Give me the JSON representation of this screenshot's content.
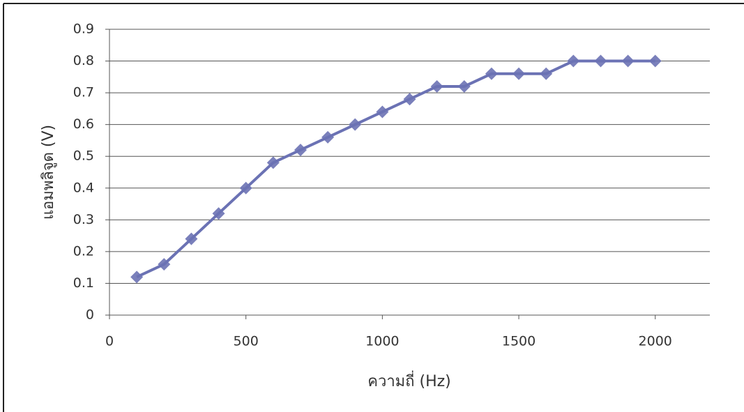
{
  "chart_data": {
    "type": "line",
    "x_label": "ความถี่ (Hz)",
    "y_label": "แอมพลิจูด (V)",
    "x": [
      100,
      200,
      300,
      400,
      500,
      600,
      700,
      800,
      900,
      1000,
      1100,
      1200,
      1300,
      1400,
      1500,
      1600,
      1700,
      1800,
      1900,
      2000
    ],
    "series": [
      {
        "color": "#6b72b4",
        "values": [
          0.12,
          0.16,
          0.24,
          0.32,
          0.4,
          0.48,
          0.52,
          0.56,
          0.6,
          0.64,
          0.68,
          0.72,
          0.72,
          0.76,
          0.76,
          0.76,
          0.8,
          0.8,
          0.8,
          0.8
        ]
      }
    ],
    "xlim": [
      0,
      2200
    ],
    "xticks": [
      0,
      500,
      1000,
      1500,
      2000
    ],
    "ylim": [
      0,
      0.9
    ],
    "yticks": [
      0,
      0.1,
      0.2,
      0.3,
      0.4,
      0.5,
      0.6,
      0.7,
      0.8,
      0.9
    ],
    "grid": true
  }
}
